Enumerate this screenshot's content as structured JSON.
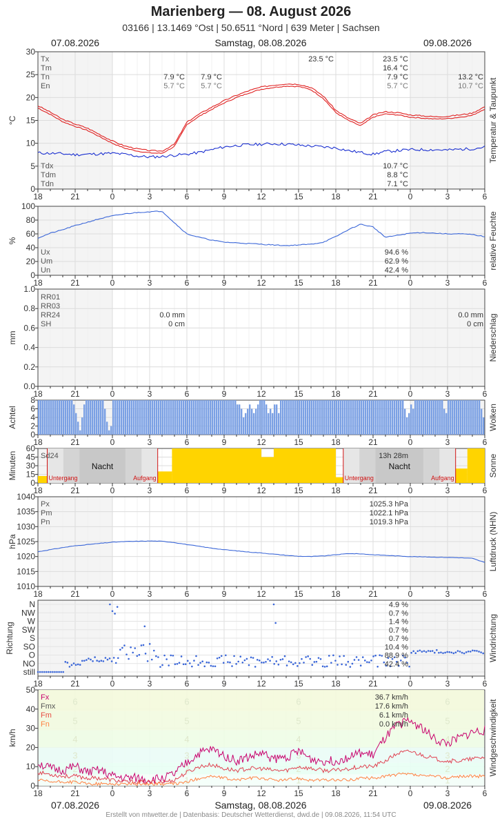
{
  "header": {
    "title": "Marienberg  —  08. August 2026",
    "subtitle": "03166  |  13.1469 °Ost  |  50.6511 °Nord  |  639 Meter  |  Sachsen",
    "date_left": "07.08.2026",
    "date_center": "Samstag, 08.08.2026",
    "date_right": "09.08.2026"
  },
  "footer": {
    "date_left": "07.08.2026",
    "date_center": "Samstag, 08.08.2026",
    "date_right": "09.08.2026",
    "credit": "Erstellt von mtwetter.de | Datenbasis: Deutscher Wetterdienst, dwd.de | 09.08.2026, 11:54 UTC"
  },
  "x_ticks": [
    "18",
    "21",
    "0",
    "3",
    "6",
    "9",
    "12",
    "15",
    "18",
    "21",
    "0",
    "3",
    "6"
  ],
  "colors": {
    "temp": "#e02020",
    "dew": "#1a2fd0",
    "humidity": "#3a66d8",
    "clouds": "#7aa0e4",
    "sun": "#ffd400",
    "night": "#c8c8c8",
    "pressure": "#3a66d8",
    "wind_dir": "#3a66d8",
    "fx": "#c8006c",
    "fmx": "#e04050",
    "fm": "#e84a40",
    "fn": "#ff8040",
    "weekend_bg": "#f4f4f4"
  },
  "chart_data": [
    {
      "id": "temperature",
      "type": "line",
      "ylabel": "°C",
      "side_label": "Temperatur & Taupunkt",
      "ylim": [
        0,
        30
      ],
      "yticks": [
        "0",
        "5",
        "10",
        "15",
        "20",
        "25",
        "30"
      ],
      "x": [
        -6,
        -5,
        -4,
        -3,
        -2,
        -1,
        0,
        1,
        2,
        3,
        4,
        5,
        6,
        7,
        8,
        9,
        10,
        11,
        12,
        13,
        14,
        15,
        16,
        17,
        18,
        19,
        20,
        21,
        22,
        23,
        24,
        25,
        26,
        27,
        28,
        29,
        30
      ],
      "series": [
        {
          "key": "temp",
          "values": [
            18.2,
            16.8,
            15.2,
            14.2,
            13.3,
            11.9,
            10.5,
            9.4,
            8.8,
            8.4,
            8.3,
            9.8,
            14.6,
            16.4,
            17.9,
            19.3,
            20.5,
            21.5,
            22.3,
            22.7,
            23.0,
            22.9,
            22.2,
            20.3,
            17.2,
            15.5,
            14.3,
            16.2,
            16.9,
            16.7,
            16.2,
            16.0,
            15.8,
            15.9,
            16.2,
            16.6,
            18.0
          ]
        },
        {
          "key": "dew",
          "values": [
            7.9,
            7.8,
            7.7,
            7.5,
            7.6,
            7.7,
            7.8,
            7.6,
            7.2,
            7.0,
            7.1,
            7.4,
            7.6,
            8.0,
            8.6,
            9.2,
            9.5,
            9.7,
            9.8,
            9.9,
            9.8,
            9.6,
            9.4,
            9.2,
            9.0,
            8.4,
            8.0,
            7.6,
            8.2,
            8.4,
            8.6,
            8.6,
            8.6,
            8.5,
            8.7,
            8.8,
            9.2
          ]
        }
      ],
      "labels_left": [
        "Tx",
        "Tm",
        "Tn",
        "En"
      ],
      "labels_left_bottom": [
        "Tdx",
        "Tdm",
        "Tdn"
      ],
      "day1": {
        "tn": "7.9 °C",
        "en": "5.7 °C"
      },
      "day2": {
        "tn": "7.9 °C",
        "en": "5.7 °C",
        "peak": "23.5 °C",
        "tx": "23.5 °C",
        "tm": "16.4 °C",
        "tn2": "7.9 °C",
        "en2": "5.7 °C",
        "tdx": "10.7 °C",
        "tdm": "8.8 °C",
        "tdn": "7.1 °C"
      },
      "day3": {
        "tn": "13.2 °C",
        "en": "10.7 °C"
      }
    },
    {
      "id": "humidity",
      "type": "line",
      "ylabel": "%",
      "side_label": "relative Feuchte",
      "ylim": [
        0,
        100
      ],
      "yticks": [
        "0",
        "20",
        "40",
        "60",
        "80",
        "100"
      ],
      "x": [
        -6,
        -5,
        -4,
        -3,
        -2,
        -1,
        0,
        1,
        2,
        3,
        4,
        5,
        6,
        7,
        8,
        9,
        10,
        11,
        12,
        13,
        14,
        15,
        16,
        17,
        18,
        19,
        20,
        21,
        22,
        23,
        24,
        25,
        26,
        27,
        28,
        29,
        30
      ],
      "values": [
        54,
        61,
        66,
        72,
        77,
        82,
        86,
        89,
        91,
        92,
        93,
        76,
        60,
        55,
        51,
        48,
        47,
        46,
        45,
        44,
        43,
        44,
        45,
        48,
        56,
        66,
        74,
        70,
        55,
        58,
        61,
        62,
        61,
        60,
        60,
        59,
        56
      ],
      "labels_left": [
        "Ux",
        "Um",
        "Un"
      ],
      "stats": [
        "94.6 %",
        "62.9 %",
        "42.4 %"
      ]
    },
    {
      "id": "precipitation",
      "type": "bar",
      "ylabel": "mm",
      "side_label": "Niederschlag",
      "ylim": [
        0,
        1
      ],
      "yticks": [
        "0.0",
        "0.2",
        "0.4",
        "0.6",
        "0.8",
        "1.0"
      ],
      "labels_left": [
        "RR01",
        "RR03",
        "RR24",
        "SH"
      ],
      "day2": {
        "rr24": "0.0 mm",
        "sh": "0 cm"
      },
      "day3": {
        "rr24": "0.0 mm",
        "sh": "0 cm"
      }
    },
    {
      "id": "clouds",
      "type": "bar",
      "ylabel": "Achtel",
      "side_label": "Wolken",
      "ylim": [
        0,
        8
      ],
      "yticks": [
        "0",
        "2",
        "4",
        "6",
        "8"
      ],
      "clear_gaps": [
        {
          "from": -3.2,
          "to": -2.2,
          "depth": [
            1,
            3,
            5,
            7,
            4,
            1
          ]
        },
        {
          "from": -0.8,
          "to": 0.0,
          "depth": [
            2,
            5,
            7,
            6,
            3
          ]
        },
        {
          "from": 10.0,
          "to": 11.7,
          "depth": [
            1,
            2,
            4,
            3,
            2,
            1,
            2,
            3,
            2,
            1
          ]
        },
        {
          "from": 12.3,
          "to": 13.4,
          "depth": [
            1,
            3,
            2,
            3,
            1
          ]
        },
        {
          "from": 23.4,
          "to": 24.2,
          "depth": [
            2,
            4,
            3,
            1
          ]
        },
        {
          "from": 26.6,
          "to": 27.0,
          "depth": [
            2,
            3
          ]
        },
        {
          "from": 29.6,
          "to": 30.0,
          "depth": [
            2,
            4
          ]
        }
      ]
    },
    {
      "id": "sun",
      "type": "bar",
      "ylabel": "Minuten",
      "side_label": "Sonne",
      "ylim": [
        0,
        60
      ],
      "yticks": [
        "0",
        "15",
        "30",
        "45",
        "60"
      ],
      "label_left": "Sd24",
      "night_label": "Nacht",
      "sunset_label": "Untergang",
      "sunrise_label": "Aufgang",
      "day_total": "13h 28m",
      "sunset": [
        -5.25,
        18.6
      ],
      "sunrise": [
        3.65,
        27.65
      ],
      "hours": [
        {
          "x": -6,
          "v": 12
        },
        {
          "x": 3.65,
          "v": 0
        },
        {
          "x": 4,
          "v": 20
        },
        {
          "x": 5,
          "v": 60
        },
        {
          "x": 12,
          "v": 45
        },
        {
          "x": 13,
          "v": 60
        },
        {
          "x": 18,
          "v": 10
        },
        {
          "x": 18.6,
          "v": 0
        },
        {
          "x": 27.65,
          "v": 0
        },
        {
          "x": 28,
          "v": 25
        },
        {
          "x": 29,
          "v": 60
        },
        {
          "x": 30,
          "v": 60
        }
      ]
    },
    {
      "id": "pressure",
      "type": "line",
      "ylabel": "hPa",
      "side_label": "Luftdruck (NHN)",
      "ylim": [
        1010,
        1040
      ],
      "yticks": [
        "1010",
        "1015",
        "1020",
        "1025",
        "1030",
        "1035",
        "1040"
      ],
      "x": [
        -6,
        -5,
        -4,
        -3,
        -2,
        -1,
        0,
        1,
        2,
        3,
        4,
        5,
        6,
        7,
        8,
        9,
        10,
        11,
        12,
        13,
        14,
        15,
        16,
        17,
        18,
        19,
        20,
        21,
        22,
        23,
        24,
        25,
        26,
        27,
        28,
        29,
        30
      ],
      "values": [
        1021.6,
        1022.3,
        1023.0,
        1023.6,
        1024.0,
        1024.4,
        1024.8,
        1025.0,
        1025.1,
        1025.2,
        1025.1,
        1024.7,
        1024.0,
        1023.4,
        1022.8,
        1022.3,
        1021.9,
        1021.5,
        1021.2,
        1020.8,
        1020.4,
        1020.1,
        1020.0,
        1020.2,
        1020.6,
        1021.0,
        1020.9,
        1020.6,
        1020.4,
        1020.2,
        1020.0,
        1019.9,
        1019.8,
        1019.7,
        1019.6,
        1019.4,
        1018.0
      ],
      "labels_left": [
        "Px",
        "Pm",
        "Pn"
      ],
      "stats": [
        "1025.3 hPa",
        "1022.1 hPa",
        "1019.3 hPa"
      ]
    },
    {
      "id": "wind_direction",
      "type": "scatter",
      "ylabel": "Richtung",
      "side_label": "Windrichtung",
      "categories": [
        "still",
        "NO",
        "O",
        "SO",
        "S",
        "SW",
        "W",
        "NW",
        "N"
      ],
      "stats": [
        "4.9 %",
        "0.7 %",
        "1.4 %",
        "0.7 %",
        "0.7 %",
        "10.4 %",
        "88.9 %",
        "42.4 %"
      ]
    },
    {
      "id": "wind_speed",
      "type": "line",
      "ylabel": "km/h",
      "side_label": "Windgeschwindigkeit",
      "ylim": [
        0,
        50
      ],
      "yticks": [
        "0",
        "10",
        "20",
        "30",
        "40",
        "50"
      ],
      "bft_labels": [
        "1",
        "2",
        "3",
        "4",
        "5",
        "6"
      ],
      "labels_left": [
        "Fx",
        "Fmx",
        "Fm",
        "Fn"
      ],
      "stats": [
        "36.7 km/h",
        "17.6 km/h",
        "6.1 km/h",
        "0.0 km/h"
      ],
      "x": [
        -6,
        -5,
        -4,
        -3,
        -2,
        -1,
        0,
        1,
        2,
        3,
        4,
        5,
        6,
        7,
        8,
        9,
        10,
        11,
        12,
        13,
        14,
        15,
        16,
        17,
        18,
        19,
        20,
        21,
        22,
        23,
        24,
        25,
        26,
        27,
        28,
        29,
        30
      ],
      "series": [
        {
          "key": "fx",
          "values": [
            12,
            9,
            8,
            10,
            7,
            8,
            5,
            4,
            4,
            3,
            4,
            6,
            12,
            17,
            19,
            16,
            13,
            15,
            17,
            14,
            15,
            18,
            14,
            13,
            13,
            15,
            17,
            16,
            25,
            32,
            34,
            30,
            24,
            22,
            25,
            28,
            29
          ]
        },
        {
          "key": "fmx",
          "values": [
            7,
            6,
            5,
            5,
            4,
            4,
            3,
            2,
            2,
            2,
            2,
            3,
            7,
            10,
            11,
            9,
            8,
            9,
            9,
            8,
            8,
            10,
            9,
            8,
            8,
            9,
            10,
            10,
            13,
            17,
            18,
            16,
            14,
            13,
            13,
            14,
            15
          ]
        },
        {
          "key": "fn",
          "values": [
            3,
            2,
            2,
            2,
            1,
            1,
            1,
            1,
            1,
            1,
            1,
            1,
            2,
            4,
            5,
            4,
            3,
            4,
            4,
            3,
            3,
            4,
            3,
            3,
            3,
            3,
            4,
            4,
            5,
            6,
            6,
            5,
            5,
            4,
            5,
            5,
            5
          ]
        }
      ]
    }
  ]
}
